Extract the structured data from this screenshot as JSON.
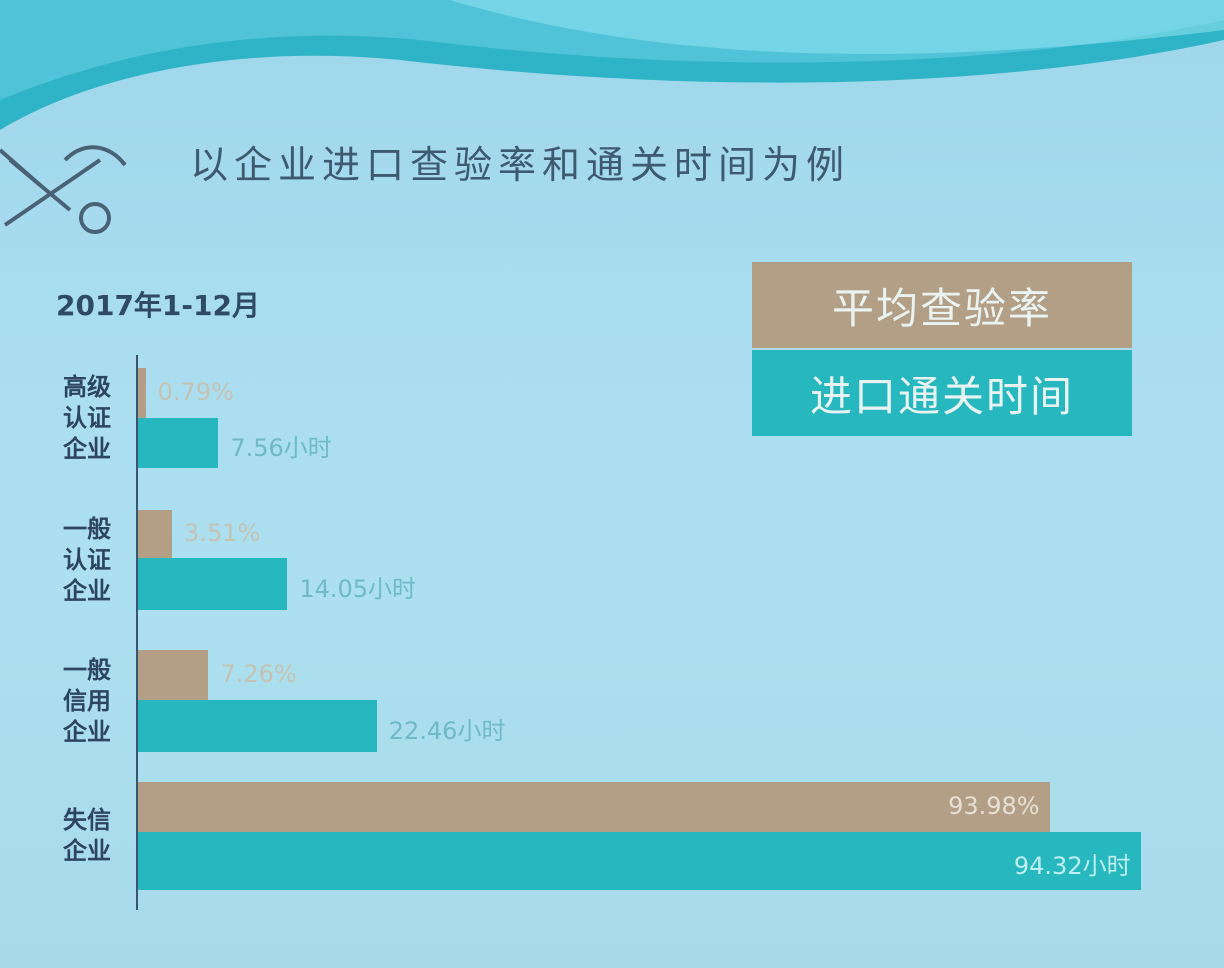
{
  "slide": {
    "title": "以企业进口查验率和通关时间为例",
    "period": "2017年1-12月"
  },
  "chart_data": {
    "type": "bar",
    "orientation": "horizontal",
    "title": "",
    "categories": [
      "高级认证企业",
      "一般认证企业",
      "一般信用企业",
      "失信企业"
    ],
    "category_lines": [
      [
        "高级",
        "认证",
        "企业"
      ],
      [
        "一般",
        "认证",
        "企业"
      ],
      [
        "一般",
        "信用",
        "企业"
      ],
      [
        "失信",
        "企业"
      ]
    ],
    "series": [
      {
        "name": "平均查验率",
        "values": [
          0.79,
          3.51,
          7.26,
          93.98
        ],
        "labels": [
          "0.79%",
          "3.51%",
          "7.26%",
          "93.98%"
        ],
        "color": "#b39f86"
      },
      {
        "name": "进口通关时间",
        "values": [
          7.56,
          14.05,
          22.46,
          94.32
        ],
        "labels": [
          "7.56小时",
          "14.05小时",
          "22.46小时",
          "94.32小时"
        ],
        "color": "#27b7bf"
      }
    ],
    "legend": "top-right",
    "grid": false
  }
}
